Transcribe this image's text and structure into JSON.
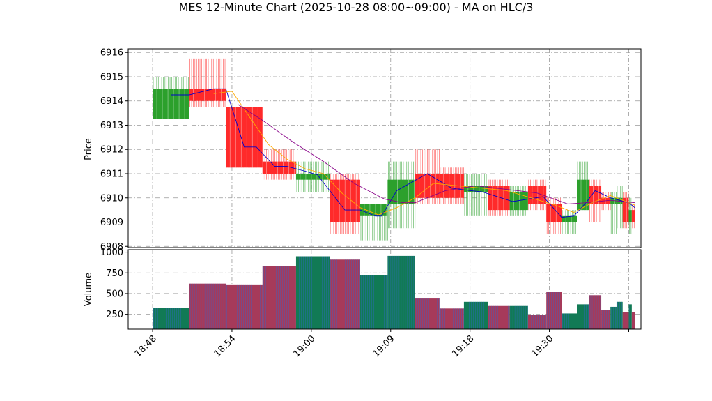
{
  "chart_data": {
    "type": "candlestick-renko",
    "title": "MES 12-Minute Chart (2025-10-28 08:00~09:00) - MA on HLC/3",
    "price_panel": {
      "ylabel": "Price",
      "ylim": [
        6907.95,
        6916.15
      ],
      "yticks": [
        6908,
        6909,
        6910,
        6911,
        6912,
        6913,
        6914,
        6915,
        6916
      ],
      "grid": true
    },
    "volume_panel": {
      "ylabel": "Volume",
      "ylim": [
        70,
        1030
      ],
      "yticks": [
        250,
        500,
        750,
        1000
      ],
      "grid": true
    },
    "x_range": [
      -2,
      82
    ],
    "xticks": [
      {
        "x": 2,
        "label": "18:48"
      },
      {
        "x": 15,
        "label": "18:54"
      },
      {
        "x": 28,
        "label": "19:00"
      },
      {
        "x": 41,
        "label": "19:09"
      },
      {
        "x": 54,
        "label": "19:18"
      },
      {
        "x": 67,
        "label": "19:30"
      },
      {
        "x": 80,
        "label": ""
      }
    ],
    "colors": {
      "up": "#2ca02c",
      "down": "#ff2a2a",
      "vol_up": "#117a55",
      "vol_down": "#a63a5a",
      "vol_edge": "#3366cc",
      "ma1": "#0000cc",
      "ma2": "#ffaa00",
      "ma3": "#880088"
    },
    "blocks": [
      {
        "x0": 2,
        "x1": 8,
        "open": 6913.25,
        "close": 6914.5,
        "high": 6915.0,
        "low": 6913.25,
        "volume": 330
      },
      {
        "x0": 8,
        "x1": 14,
        "open": 6914.5,
        "close": 6914.0,
        "high": 6915.75,
        "low": 6913.75,
        "volume": 620
      },
      {
        "x0": 14,
        "x1": 20,
        "open": 6913.75,
        "close": 6911.25,
        "high": 6913.75,
        "low": 6911.25,
        "volume": 610
      },
      {
        "x0": 20,
        "x1": 25.5,
        "open": 6911.5,
        "close": 6911.0,
        "high": 6912.0,
        "low": 6910.75,
        "volume": 830
      },
      {
        "x0": 25.5,
        "x1": 31,
        "open": 6910.75,
        "close": 6911.0,
        "high": 6911.5,
        "low": 6910.25,
        "volume": 950
      },
      {
        "x0": 31,
        "x1": 36,
        "open": 6910.75,
        "close": 6909.0,
        "high": 6911.0,
        "low": 6908.5,
        "volume": 910
      },
      {
        "x0": 36,
        "x1": 40.5,
        "open": 6909.25,
        "close": 6909.75,
        "high": 6909.75,
        "low": 6908.25,
        "volume": 720
      },
      {
        "x0": 40.5,
        "x1": 45,
        "open": 6909.75,
        "close": 6910.75,
        "high": 6911.5,
        "low": 6908.75,
        "volume": 955
      },
      {
        "x0": 45,
        "x1": 49,
        "open": 6911.0,
        "close": 6910.0,
        "high": 6912.0,
        "low": 6909.75,
        "volume": 440
      },
      {
        "x0": 49,
        "x1": 53,
        "open": 6911.0,
        "close": 6910.0,
        "high": 6911.25,
        "low": 6909.75,
        "volume": 320
      },
      {
        "x0": 53,
        "x1": 57,
        "open": 6910.25,
        "close": 6910.5,
        "high": 6911.0,
        "low": 6909.25,
        "volume": 400
      },
      {
        "x0": 57,
        "x1": 60.5,
        "open": 6910.5,
        "close": 6909.5,
        "high": 6910.75,
        "low": 6909.25,
        "volume": 350
      },
      {
        "x0": 60.5,
        "x1": 63.5,
        "open": 6909.5,
        "close": 6910.25,
        "high": 6910.5,
        "low": 6909.25,
        "volume": 350
      },
      {
        "x0": 63.5,
        "x1": 66.5,
        "open": 6910.5,
        "close": 6909.75,
        "high": 6910.75,
        "low": 6909.5,
        "volume": 240
      },
      {
        "x0": 66.5,
        "x1": 69,
        "open": 6909.75,
        "close": 6909.0,
        "high": 6910.0,
        "low": 6908.5,
        "volume": 520
      },
      {
        "x0": 69,
        "x1": 71.5,
        "open": 6909.0,
        "close": 6909.25,
        "high": 6909.5,
        "low": 6908.5,
        "volume": 260
      },
      {
        "x0": 71.5,
        "x1": 73.5,
        "open": 6909.5,
        "close": 6910.75,
        "high": 6911.5,
        "low": 6909.5,
        "volume": 370
      },
      {
        "x0": 73.5,
        "x1": 75.5,
        "open": 6910.5,
        "close": 6909.75,
        "high": 6910.75,
        "low": 6909.0,
        "volume": 480
      },
      {
        "x0": 75.5,
        "x1": 77,
        "open": 6910.0,
        "close": 6909.75,
        "high": 6910.25,
        "low": 6909.5,
        "volume": 300
      },
      {
        "x0": 77,
        "x1": 78,
        "open": 6909.75,
        "close": 6910.0,
        "high": 6910.25,
        "low": 6908.5,
        "volume": 340
      },
      {
        "x0": 78,
        "x1": 79,
        "open": 6909.75,
        "close": 6910.0,
        "high": 6910.5,
        "low": 6908.75,
        "volume": 400
      },
      {
        "x0": 79,
        "x1": 80,
        "open": 6910.0,
        "close": 6909.0,
        "high": 6910.25,
        "low": 6908.75,
        "volume": 280
      },
      {
        "x0": 80,
        "x1": 80.5,
        "open": 6909.0,
        "close": 6909.5,
        "high": 6910.0,
        "low": 6908.5,
        "volume": 370
      },
      {
        "x0": 80.5,
        "x1": 81,
        "open": 6909.5,
        "close": 6909.0,
        "high": 6909.75,
        "low": 6908.75,
        "volume": 280
      }
    ],
    "ma_series": [
      {
        "color": "#0000cc",
        "points": [
          [
            5,
            6914.25
          ],
          [
            8,
            6914.25
          ],
          [
            12,
            6914.5
          ],
          [
            14,
            6914.5
          ],
          [
            17,
            6912.1
          ],
          [
            19,
            6912.1
          ],
          [
            22,
            6911.3
          ],
          [
            24,
            6911.3
          ],
          [
            27,
            6911.1
          ],
          [
            29,
            6910.95
          ],
          [
            33.5,
            6909.5
          ],
          [
            36,
            6909.5
          ],
          [
            38.5,
            6909.25
          ],
          [
            39.5,
            6909.25
          ],
          [
            42,
            6910.3
          ],
          [
            47,
            6911.0
          ],
          [
            51,
            6910.4
          ],
          [
            54,
            6910.3
          ],
          [
            56,
            6910.25
          ],
          [
            61,
            6909.85
          ],
          [
            66,
            6910.05
          ],
          [
            69,
            6909.2
          ],
          [
            71,
            6909.25
          ],
          [
            73,
            6909.8
          ],
          [
            74.5,
            6910.3
          ],
          [
            77,
            6910.0
          ],
          [
            80,
            6909.8
          ],
          [
            81,
            6909.6
          ]
        ]
      },
      {
        "color": "#ffaa00",
        "points": [
          [
            12,
            6914.3
          ],
          [
            15,
            6914.4
          ],
          [
            18,
            6913.3
          ],
          [
            21,
            6912.2
          ],
          [
            24,
            6911.6
          ],
          [
            27,
            6911.2
          ],
          [
            30,
            6911.0
          ],
          [
            33,
            6910.2
          ],
          [
            36,
            6909.6
          ],
          [
            39,
            6909.3
          ],
          [
            42,
            6909.6
          ],
          [
            45,
            6910.0
          ],
          [
            48,
            6910.6
          ],
          [
            52,
            6910.5
          ],
          [
            56,
            6910.4
          ],
          [
            60,
            6910.3
          ],
          [
            64,
            6910.0
          ],
          [
            68,
            6909.7
          ],
          [
            71,
            6909.4
          ],
          [
            74,
            6909.8
          ],
          [
            77,
            6910.1
          ],
          [
            80,
            6909.8
          ],
          [
            81,
            6909.7
          ]
        ]
      },
      {
        "color": "#880088",
        "points": [
          [
            16,
            6913.85
          ],
          [
            20,
            6913.2
          ],
          [
            25,
            6912.3
          ],
          [
            30,
            6911.5
          ],
          [
            35,
            6910.6
          ],
          [
            40,
            6909.95
          ],
          [
            43,
            6909.8
          ],
          [
            45,
            6909.8
          ],
          [
            50,
            6910.3
          ],
          [
            55,
            6910.5
          ],
          [
            60,
            6910.35
          ],
          [
            65,
            6910.2
          ],
          [
            70,
            6909.75
          ],
          [
            73,
            6909.8
          ],
          [
            77,
            6909.9
          ],
          [
            81,
            6909.8
          ]
        ]
      }
    ]
  }
}
